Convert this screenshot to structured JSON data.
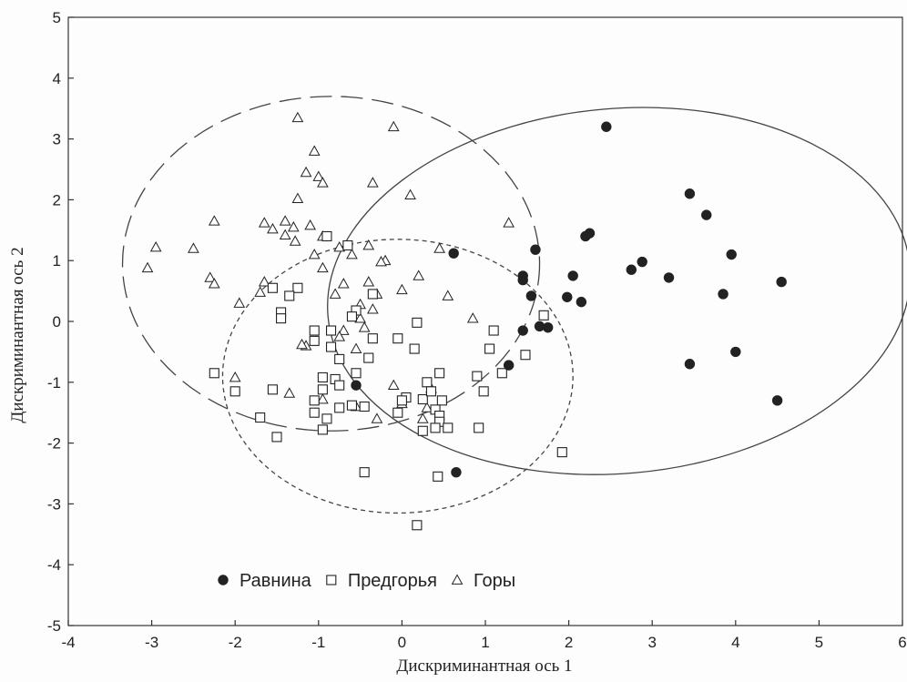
{
  "chart_data": {
    "type": "scatter",
    "xlabel": "Дискриминантная ось 1",
    "ylabel": "Дискриминантная ось 2",
    "xlim": [
      -4,
      6
    ],
    "ylim": [
      -5,
      5
    ],
    "xticks": [
      -4,
      -3,
      -2,
      -1,
      0,
      1,
      2,
      3,
      4,
      5,
      6
    ],
    "yticks": [
      -5,
      -4,
      -3,
      -2,
      -1,
      0,
      1,
      2,
      3,
      4,
      5
    ],
    "grid": false,
    "legend_position": "bottom-left",
    "series": [
      {
        "name": "Равнина",
        "marker": "filled-circle",
        "points": [
          [
            2.45,
            3.2
          ],
          [
            3.45,
            2.1
          ],
          [
            3.65,
            1.75
          ],
          [
            3.95,
            1.1
          ],
          [
            4.55,
            0.65
          ],
          [
            2.2,
            1.4
          ],
          [
            2.25,
            1.45
          ],
          [
            2.75,
            0.85
          ],
          [
            2.88,
            0.98
          ],
          [
            3.2,
            0.72
          ],
          [
            3.85,
            0.45
          ],
          [
            1.6,
            1.18
          ],
          [
            1.45,
            0.75
          ],
          [
            1.45,
            0.68
          ],
          [
            1.55,
            0.42
          ],
          [
            2.05,
            0.75
          ],
          [
            1.98,
            0.4
          ],
          [
            2.15,
            0.32
          ],
          [
            1.65,
            -0.08
          ],
          [
            1.75,
            -0.1
          ],
          [
            1.45,
            -0.15
          ],
          [
            1.28,
            -0.72
          ],
          [
            3.45,
            -0.7
          ],
          [
            4.0,
            -0.5
          ],
          [
            4.5,
            -1.3
          ],
          [
            0.62,
            1.12
          ],
          [
            -0.55,
            -1.05
          ],
          [
            0.65,
            -2.48
          ]
        ]
      },
      {
        "name": "Предгорья",
        "marker": "open-square",
        "points": [
          [
            -0.65,
            1.25
          ],
          [
            -0.9,
            1.4
          ],
          [
            -1.25,
            0.55
          ],
          [
            -1.55,
            0.55
          ],
          [
            -1.35,
            0.42
          ],
          [
            -1.45,
            0.15
          ],
          [
            -1.45,
            0.05
          ],
          [
            -0.35,
            0.45
          ],
          [
            -0.55,
            0.18
          ],
          [
            -0.6,
            0.08
          ],
          [
            -0.85,
            -0.15
          ],
          [
            -1.05,
            -0.15
          ],
          [
            -1.05,
            -0.32
          ],
          [
            -0.85,
            -0.42
          ],
          [
            -0.35,
            -0.28
          ],
          [
            -0.05,
            -0.28
          ],
          [
            0.18,
            -0.02
          ],
          [
            0.15,
            -0.45
          ],
          [
            -0.4,
            -0.6
          ],
          [
            -0.75,
            -0.62
          ],
          [
            -0.55,
            -0.85
          ],
          [
            -0.8,
            -0.95
          ],
          [
            -0.95,
            -0.92
          ],
          [
            -0.75,
            -1.05
          ],
          [
            -0.95,
            -1.12
          ],
          [
            -1.05,
            -1.3
          ],
          [
            -1.05,
            -1.5
          ],
          [
            -0.9,
            -1.6
          ],
          [
            -0.95,
            -1.78
          ],
          [
            -0.6,
            -1.38
          ],
          [
            -0.75,
            -1.42
          ],
          [
            -0.45,
            -1.4
          ],
          [
            0.05,
            -1.25
          ],
          [
            0.0,
            -1.3
          ],
          [
            -0.05,
            -1.5
          ],
          [
            0.25,
            -1.28
          ],
          [
            0.3,
            -1.0
          ],
          [
            0.45,
            -0.85
          ],
          [
            0.35,
            -1.15
          ],
          [
            0.48,
            -1.3
          ],
          [
            0.4,
            -1.45
          ],
          [
            0.45,
            -1.55
          ],
          [
            0.45,
            -1.65
          ],
          [
            0.4,
            -1.75
          ],
          [
            0.55,
            -1.75
          ],
          [
            0.25,
            -1.8
          ],
          [
            0.9,
            -0.9
          ],
          [
            0.98,
            -1.15
          ],
          [
            1.05,
            -0.45
          ],
          [
            1.1,
            -0.15
          ],
          [
            1.2,
            -0.85
          ],
          [
            1.48,
            -0.55
          ],
          [
            1.7,
            0.1
          ],
          [
            0.92,
            -1.75
          ],
          [
            1.92,
            -2.15
          ],
          [
            -2.25,
            -0.85
          ],
          [
            -2.0,
            -1.15
          ],
          [
            -1.55,
            -1.12
          ],
          [
            -1.7,
            -1.58
          ],
          [
            -1.5,
            -1.9
          ],
          [
            -0.45,
            -2.48
          ],
          [
            0.43,
            -2.55
          ],
          [
            0.18,
            -3.35
          ]
        ]
      },
      {
        "name": "Горы",
        "marker": "open-triangle",
        "points": [
          [
            -1.25,
            3.35
          ],
          [
            -0.1,
            3.2
          ],
          [
            -1.05,
            2.8
          ],
          [
            -1.15,
            2.45
          ],
          [
            -1.0,
            2.38
          ],
          [
            -0.95,
            2.28
          ],
          [
            -0.35,
            2.28
          ],
          [
            0.1,
            2.08
          ],
          [
            -1.25,
            2.02
          ],
          [
            -1.3,
            1.55
          ],
          [
            -1.1,
            1.58
          ],
          [
            -1.4,
            1.65
          ],
          [
            -1.65,
            1.62
          ],
          [
            -1.55,
            1.52
          ],
          [
            -1.4,
            1.42
          ],
          [
            -1.28,
            1.32
          ],
          [
            -2.25,
            1.65
          ],
          [
            -2.95,
            1.22
          ],
          [
            -3.05,
            0.88
          ],
          [
            -2.5,
            1.2
          ],
          [
            -2.3,
            0.72
          ],
          [
            -2.25,
            0.62
          ],
          [
            -1.65,
            0.65
          ],
          [
            -1.7,
            0.48
          ],
          [
            -1.95,
            0.3
          ],
          [
            -0.95,
            1.4
          ],
          [
            -0.75,
            1.22
          ],
          [
            -0.4,
            1.25
          ],
          [
            -1.05,
            1.1
          ],
          [
            -0.95,
            0.88
          ],
          [
            -0.7,
            0.62
          ],
          [
            -0.8,
            0.45
          ],
          [
            -0.6,
            1.1
          ],
          [
            -0.2,
            1.0
          ],
          [
            -0.25,
            0.98
          ],
          [
            -0.4,
            0.65
          ],
          [
            -0.3,
            0.45
          ],
          [
            -0.5,
            0.28
          ],
          [
            -0.35,
            0.2
          ],
          [
            -0.5,
            0.05
          ],
          [
            -0.7,
            -0.15
          ],
          [
            -0.75,
            -0.25
          ],
          [
            -0.55,
            -0.45
          ],
          [
            -0.45,
            -0.1
          ],
          [
            -1.15,
            -0.4
          ],
          [
            -1.2,
            -0.38
          ],
          [
            0.0,
            0.52
          ],
          [
            0.2,
            0.75
          ],
          [
            0.45,
            1.2
          ],
          [
            0.55,
            0.42
          ],
          [
            0.85,
            0.05
          ],
          [
            1.28,
            1.62
          ],
          [
            0.35,
            -1.1
          ],
          [
            0.3,
            -1.42
          ],
          [
            0.25,
            -1.6
          ],
          [
            -1.35,
            -1.18
          ],
          [
            -2.0,
            -0.92
          ],
          [
            -0.95,
            -1.28
          ],
          [
            -0.1,
            -1.05
          ],
          [
            0.0,
            -1.35
          ],
          [
            -0.3,
            -1.6
          ],
          [
            -0.55,
            -1.4
          ]
        ]
      }
    ],
    "ellipses": [
      {
        "group": "Равнина",
        "cx": 2.6,
        "cy": 0.5,
        "rx": 3.5,
        "ry": 3.0,
        "angle": 5,
        "style": "solid"
      },
      {
        "group": "Предгорья",
        "cx": -0.05,
        "cy": -0.9,
        "rx": 2.1,
        "ry": 2.25,
        "angle": 0,
        "style": "dotted"
      },
      {
        "group": "Горы",
        "cx": -0.85,
        "cy": 0.95,
        "rx": 2.5,
        "ry": 2.75,
        "angle": 0,
        "style": "long-dash"
      }
    ],
    "legend": [
      {
        "label": "Равнина",
        "marker": "filled-circle"
      },
      {
        "label": "Предгорья",
        "marker": "open-square"
      },
      {
        "label": "Горы",
        "marker": "open-triangle"
      }
    ],
    "colors": {
      "ink": "#222222",
      "background": "#fdfdfd",
      "frame": "#333333"
    }
  }
}
